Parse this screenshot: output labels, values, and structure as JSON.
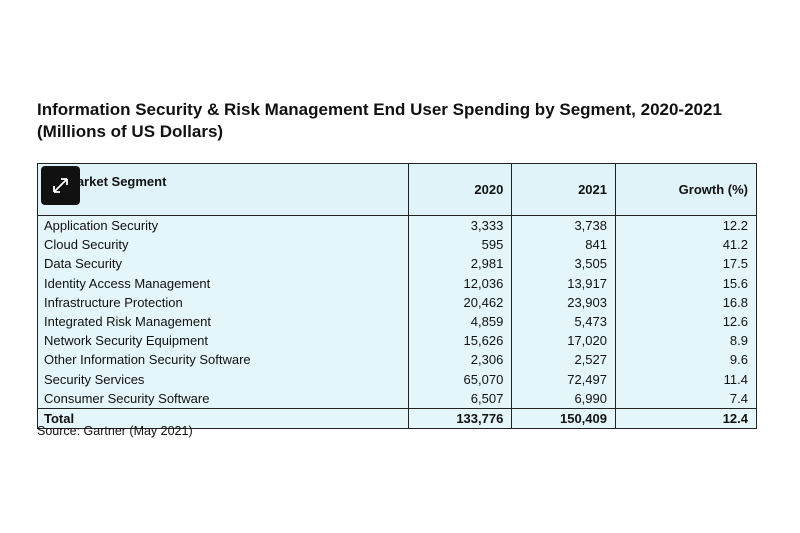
{
  "header": {
    "title": "Information Security & Risk Management End User Spending by Segment, 2020-2021",
    "subtitle": "(Millions of US Dollars)"
  },
  "table": {
    "columns": [
      "Market Segment",
      "2020",
      "2021",
      "Growth (%)"
    ],
    "rows": [
      [
        "Application Security",
        "3,333",
        "3,738",
        "12.2"
      ],
      [
        "Cloud Security",
        "595",
        "841",
        "41.2"
      ],
      [
        "Data Security",
        "2,981",
        "3,505",
        "17.5"
      ],
      [
        "Identity Access Management",
        "12,036",
        "13,917",
        "15.6"
      ],
      [
        "Infrastructure Protection",
        "20,462",
        "23,903",
        "16.8"
      ],
      [
        "Integrated Risk Management",
        "4,859",
        "5,473",
        "12.6"
      ],
      [
        "Network Security Equipment",
        "15,626",
        "17,020",
        "8.9"
      ],
      [
        "Other Information Security Software",
        "2,306",
        "2,527",
        "9.6"
      ],
      [
        "Security Services",
        "65,070",
        "72,497",
        "11.4"
      ],
      [
        "Consumer Security Software",
        "6,507",
        "6,990",
        "7.4"
      ]
    ],
    "total": [
      "Total",
      "133,776",
      "150,409",
      "12.4"
    ]
  },
  "footer": {
    "source": "Source: Gartner (May 2021)"
  }
}
